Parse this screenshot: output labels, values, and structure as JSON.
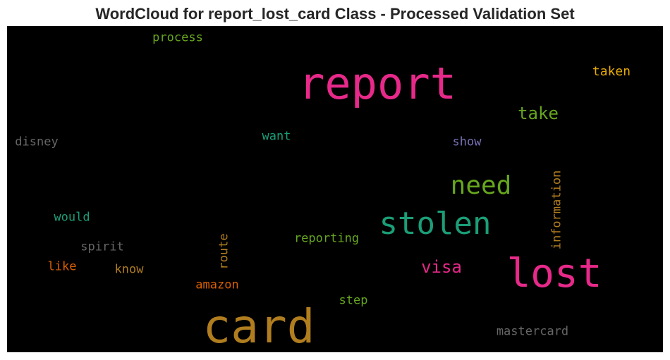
{
  "title": "WordCloud for report_lost_card Class - Processed Validation Set",
  "colors": {
    "background": "#000000",
    "pink": "#e7298a",
    "gold": "#b07d1f",
    "teal": "#1b9e77",
    "green": "#66a61e",
    "orange": "#d95f02",
    "gray": "#666666",
    "purple": "#7570b3",
    "amber": "#e6ab02"
  },
  "words": {
    "report": "report",
    "card": "card",
    "lost": "lost",
    "stolen": "stolen",
    "need": "need",
    "visa": "visa",
    "take": "take",
    "taken": "taken",
    "process": "process",
    "want": "want",
    "show": "show",
    "disney": "disney",
    "would": "would",
    "spirit": "spirit",
    "like": "like",
    "know": "know",
    "route": "route",
    "reporting": "reporting",
    "amazon": "amazon",
    "step": "step",
    "information": "information",
    "mastercard": "mastercard"
  }
}
